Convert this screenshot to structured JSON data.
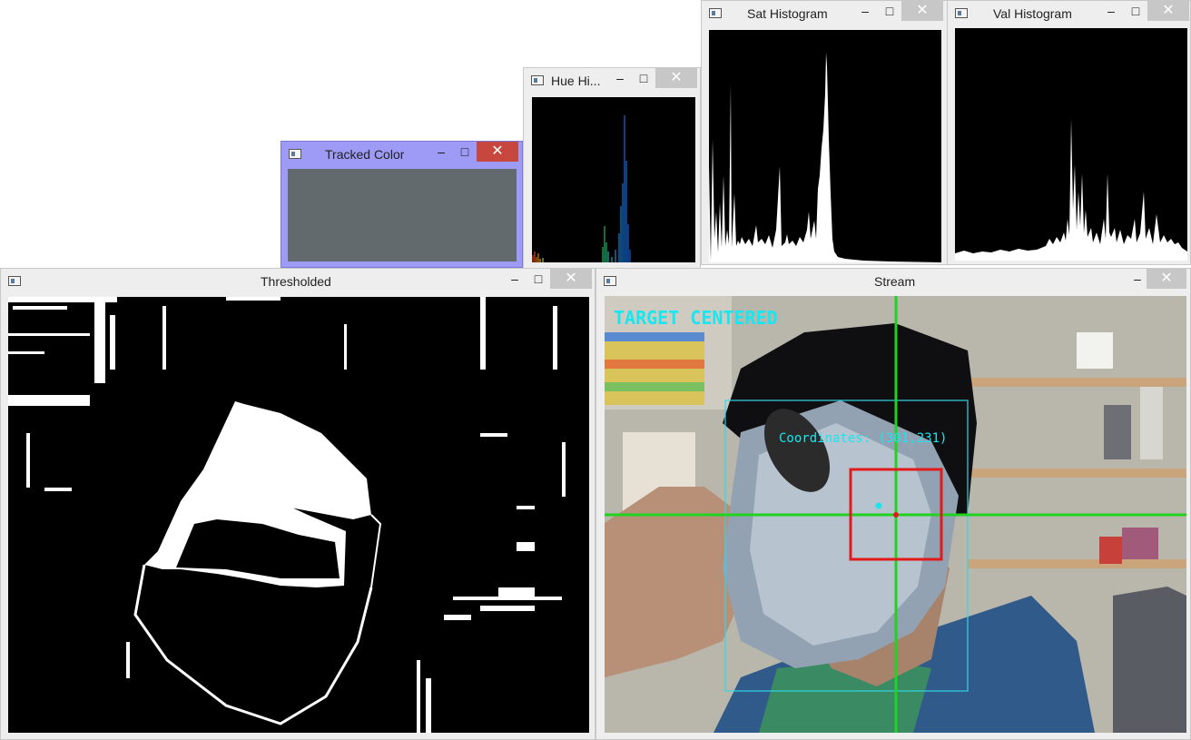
{
  "windows": {
    "tracked_color": {
      "title": "Tracked Color",
      "swatch_color": "#626a6e"
    },
    "hue_hist": {
      "title": "Hue Hi..."
    },
    "sat_hist": {
      "title": "Sat Histogram"
    },
    "val_hist": {
      "title": "Val Histogram"
    },
    "thresholded": {
      "title": "Thresholded"
    },
    "stream": {
      "title": "Stream"
    }
  },
  "controls": {
    "minimize": "–",
    "maximize": "□",
    "close": "✕"
  },
  "stream_overlay": {
    "status": "TARGET CENTERED",
    "coordinates": "Coordinates: (301,231)",
    "status_color": "#19e6f0",
    "crosshair_color": "#1fd31f",
    "target_box_color": "#e11a1a",
    "search_box_color": "#33d6e6"
  },
  "icons": [
    "app-window-icon",
    "minimize-icon",
    "maximize-icon",
    "close-icon"
  ]
}
